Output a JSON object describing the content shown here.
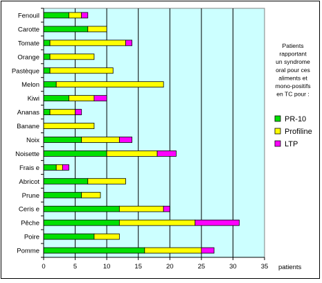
{
  "chart_data": {
    "type": "bar",
    "orientation": "horizontal",
    "stacked": true,
    "categories": [
      "Fenouil",
      "Carotte",
      "Tomate",
      "Orange",
      "Pastèque",
      "Melon",
      "Kiwi",
      "Ananas",
      "Banane",
      "Noix",
      "Noisette",
      "Frais e",
      "Abricot",
      "Prune",
      "Ceris e",
      "Pêche",
      "Poire",
      "Pomme"
    ],
    "series": [
      {
        "name": "PR-10",
        "color": "#00e000",
        "values": [
          4,
          7,
          1,
          1,
          1,
          2,
          4,
          1,
          0,
          6,
          10,
          2,
          7,
          6,
          12,
          12,
          8,
          16
        ]
      },
      {
        "name": "Profiline",
        "color": "#ffff00",
        "values": [
          2,
          3,
          12,
          7,
          10,
          17,
          4,
          4,
          8,
          6,
          8,
          1,
          6,
          3,
          7,
          12,
          4,
          9
        ]
      },
      {
        "name": "LTP",
        "color": "#ff00ff",
        "values": [
          1,
          0,
          1,
          0,
          0,
          0,
          2,
          1,
          0,
          2,
          3,
          1,
          0,
          0,
          1,
          7,
          0,
          2
        ]
      }
    ],
    "xlim": [
      0,
      35
    ],
    "xticks": [
      "0",
      "5",
      "10",
      "15",
      "20",
      "25",
      "30",
      "35"
    ],
    "xlabel": "patients",
    "plot_background": "#ccffff",
    "grid": true,
    "legend_position": "right",
    "note": [
      "Patients",
      "rapportant",
      "un syndrome",
      "oral pour ces",
      "aliments et",
      "mono-positifs",
      "en TC pour :"
    ]
  }
}
